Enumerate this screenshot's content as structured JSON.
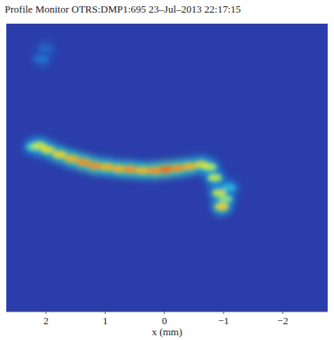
{
  "chart_data": {
    "type": "heatmap",
    "title": "Profile Monitor OTRS:DMP1:695 23–Jul–2013 22:17:15",
    "x_label": "x (mm)",
    "x": [
      2.21,
      2.11,
      1.97,
      1.77,
      1.57,
      1.37,
      1.17,
      0.97,
      0.77,
      0.57,
      0.37,
      0.17,
      -0.03,
      -0.23,
      -0.43,
      -0.63,
      -0.76,
      -0.85,
      -0.93,
      -0.97,
      -1.03,
      -1.09,
      2.07,
      2.01
    ],
    "y": [
      0.35,
      0.37,
      0.3,
      0.22,
      0.15,
      0.09,
      0.03,
      0.01,
      -0.02,
      -0.03,
      -0.05,
      -0.05,
      -0.03,
      -0.01,
      0.02,
      0.05,
      0.01,
      -0.17,
      -0.43,
      -0.66,
      -0.53,
      -0.34,
      1.83,
      2.01
    ],
    "values": [
      0.5,
      0.65,
      0.7,
      0.75,
      0.8,
      0.85,
      0.85,
      0.8,
      0.8,
      0.85,
      0.8,
      0.85,
      0.9,
      0.85,
      0.8,
      0.7,
      0.6,
      0.6,
      0.65,
      0.75,
      0.55,
      0.4,
      0.2,
      0.15
    ],
    "zlim": [
      0,
      1
    ],
    "xlim": [
      2.67,
      -2.76
    ],
    "ylim": [
      -2.43,
      2.43
    ],
    "xticks": [
      2,
      1,
      0,
      {
        "value": -1,
        "label": "−1"
      },
      {
        "value": -2,
        "label": "−2"
      }
    ],
    "tick_labels": "x",
    "grid": false
  }
}
